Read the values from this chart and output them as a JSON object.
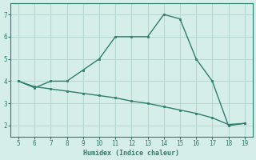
{
  "xlabel": "Humidex (Indice chaleur)",
  "x_curve": [
    5,
    6,
    7,
    8,
    9,
    10,
    11,
    12,
    13,
    14,
    15,
    16,
    17,
    18,
    19
  ],
  "y_curve": [
    4.0,
    3.7,
    4.0,
    4.0,
    4.5,
    5.0,
    6.0,
    6.0,
    6.0,
    7.0,
    6.8,
    5.0,
    4.0,
    2.0,
    2.1
  ],
  "x_line": [
    5,
    6,
    7,
    8,
    9,
    10,
    11,
    12,
    13,
    14,
    15,
    16,
    17,
    18,
    19
  ],
  "y_line": [
    4.0,
    3.75,
    3.65,
    3.55,
    3.45,
    3.35,
    3.25,
    3.1,
    3.0,
    2.85,
    2.7,
    2.55,
    2.35,
    2.05,
    2.1
  ],
  "line_color": "#2e7d6e",
  "bg_color": "#d6eeea",
  "grid_color": "#b8d8d4",
  "xlim": [
    4.5,
    19.5
  ],
  "ylim": [
    1.5,
    7.5
  ],
  "xticks": [
    5,
    6,
    7,
    8,
    9,
    10,
    11,
    12,
    13,
    14,
    15,
    16,
    17,
    18,
    19
  ],
  "yticks": [
    2,
    3,
    4,
    5,
    6,
    7
  ]
}
